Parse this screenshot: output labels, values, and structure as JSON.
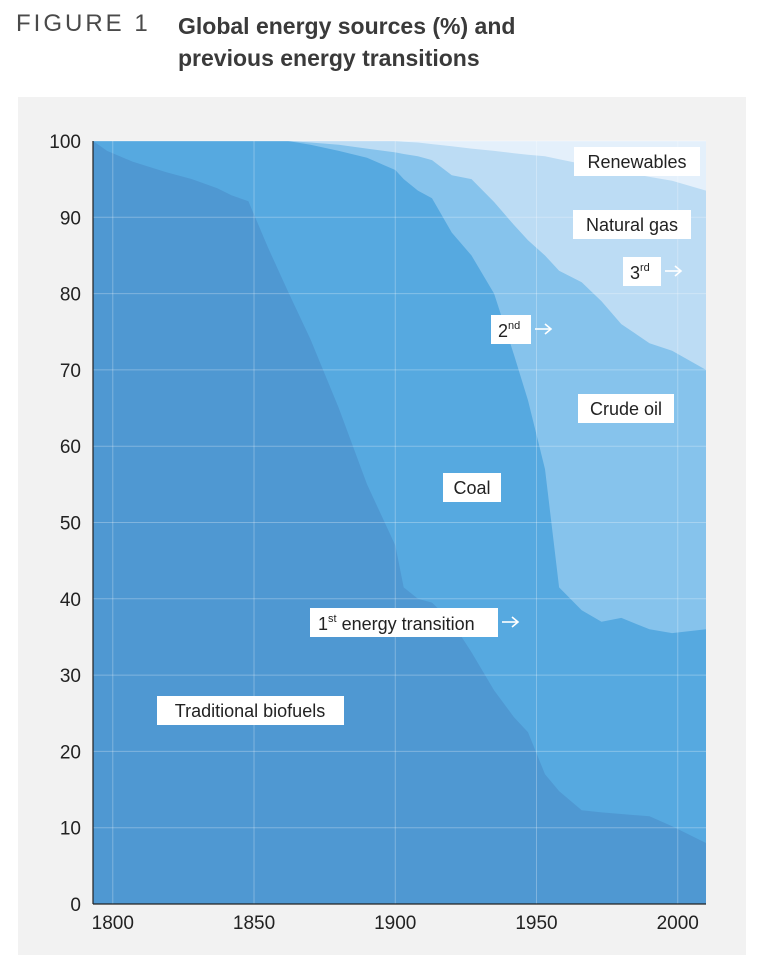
{
  "figure": {
    "label": "FIGURE 1",
    "title_line1": "Global energy sources (%) and",
    "title_line2": "previous energy transitions"
  },
  "chart_data": {
    "type": "area",
    "stacked": true,
    "xlim": [
      1793,
      2010
    ],
    "ylim": [
      0,
      100
    ],
    "x_ticks": [
      1800,
      1850,
      1900,
      1950,
      2000
    ],
    "y_ticks": [
      0,
      10,
      20,
      30,
      40,
      50,
      60,
      70,
      80,
      90,
      100
    ],
    "gridlines": true,
    "series": [
      {
        "name": "Traditional biofuels",
        "color": "#4f98d2",
        "points": [
          [
            1793,
            100
          ],
          [
            1798,
            98.7
          ],
          [
            1807,
            97.3
          ],
          [
            1819,
            95.9
          ],
          [
            1828,
            95.0
          ],
          [
            1837,
            93.8
          ],
          [
            1842,
            92.9
          ],
          [
            1848,
            92.1
          ],
          [
            1855,
            86
          ],
          [
            1862,
            80.3
          ],
          [
            1870,
            74
          ],
          [
            1880,
            65
          ],
          [
            1890,
            55
          ],
          [
            1900,
            47
          ],
          [
            1903,
            41.5
          ],
          [
            1908,
            40
          ],
          [
            1913,
            39.5
          ],
          [
            1920,
            37
          ],
          [
            1927,
            33
          ],
          [
            1935,
            28
          ],
          [
            1942,
            24.5
          ],
          [
            1947,
            22.5
          ],
          [
            1953,
            17
          ],
          [
            1958,
            14.8
          ],
          [
            1966,
            12.3
          ],
          [
            1973,
            12
          ],
          [
            1980,
            11.8
          ],
          [
            1990,
            11.5
          ],
          [
            1998,
            10.2
          ],
          [
            2010,
            8
          ]
        ]
      },
      {
        "name": "Coal",
        "color": "#56a9e0",
        "points": [
          [
            1793,
            100
          ],
          [
            1798,
            100
          ],
          [
            1807,
            100
          ],
          [
            1819,
            100
          ],
          [
            1828,
            100
          ],
          [
            1837,
            100
          ],
          [
            1842,
            100
          ],
          [
            1848,
            100
          ],
          [
            1855,
            100
          ],
          [
            1862,
            100
          ],
          [
            1870,
            99.5
          ],
          [
            1880,
            98.7
          ],
          [
            1890,
            97.8
          ],
          [
            1900,
            96.2
          ],
          [
            1903,
            95
          ],
          [
            1908,
            93.5
          ],
          [
            1913,
            92.5
          ],
          [
            1920,
            88
          ],
          [
            1927,
            85
          ],
          [
            1935,
            80
          ],
          [
            1942,
            72
          ],
          [
            1947,
            66
          ],
          [
            1953,
            57
          ],
          [
            1958,
            41.5
          ],
          [
            1966,
            38.5
          ],
          [
            1973,
            37
          ],
          [
            1980,
            37.5
          ],
          [
            1990,
            36
          ],
          [
            1998,
            35.5
          ],
          [
            2010,
            36
          ]
        ]
      },
      {
        "name": "Crude oil",
        "color": "#86c3ec",
        "points": [
          [
            1793,
            100
          ],
          [
            1798,
            100
          ],
          [
            1807,
            100
          ],
          [
            1819,
            100
          ],
          [
            1828,
            100
          ],
          [
            1837,
            100
          ],
          [
            1842,
            100
          ],
          [
            1848,
            100
          ],
          [
            1855,
            100
          ],
          [
            1862,
            100
          ],
          [
            1870,
            99.8
          ],
          [
            1880,
            99.5
          ],
          [
            1890,
            99
          ],
          [
            1900,
            98.5
          ],
          [
            1903,
            98.3
          ],
          [
            1908,
            98
          ],
          [
            1913,
            97.5
          ],
          [
            1920,
            95.5
          ],
          [
            1927,
            95
          ],
          [
            1935,
            92
          ],
          [
            1942,
            89
          ],
          [
            1947,
            87
          ],
          [
            1953,
            85
          ],
          [
            1958,
            83
          ],
          [
            1966,
            81.5
          ],
          [
            1973,
            79
          ],
          [
            1980,
            76
          ],
          [
            1990,
            73.5
          ],
          [
            1998,
            72.5
          ],
          [
            2010,
            70
          ]
        ]
      },
      {
        "name": "Natural gas",
        "color": "#bcdcf4",
        "points": [
          [
            1793,
            100
          ],
          [
            1798,
            100
          ],
          [
            1807,
            100
          ],
          [
            1819,
            100
          ],
          [
            1828,
            100
          ],
          [
            1837,
            100
          ],
          [
            1842,
            100
          ],
          [
            1848,
            100
          ],
          [
            1855,
            100
          ],
          [
            1862,
            100
          ],
          [
            1870,
            100
          ],
          [
            1880,
            100
          ],
          [
            1890,
            100
          ],
          [
            1900,
            100
          ],
          [
            1903,
            99.9
          ],
          [
            1908,
            99.8
          ],
          [
            1913,
            99.6
          ],
          [
            1920,
            99.3
          ],
          [
            1927,
            99
          ],
          [
            1935,
            98.7
          ],
          [
            1942,
            98.4
          ],
          [
            1947,
            98.2
          ],
          [
            1953,
            98
          ],
          [
            1958,
            97.6
          ],
          [
            1966,
            97
          ],
          [
            1973,
            96.5
          ],
          [
            1980,
            96
          ],
          [
            1990,
            95.3
          ],
          [
            1998,
            94.8
          ],
          [
            2010,
            93.5
          ]
        ]
      },
      {
        "name": "Renewables",
        "color": "#e4f0fb",
        "points": [
          [
            1793,
            100
          ],
          [
            2010,
            100
          ]
        ]
      }
    ],
    "annotations": [
      {
        "id": "renewables",
        "text": "Renewables"
      },
      {
        "id": "natural-gas",
        "text": "Natural gas"
      },
      {
        "id": "crude-oil",
        "text": "Crude oil"
      },
      {
        "id": "coal",
        "text": "Coal"
      },
      {
        "id": "traditional-biofuels",
        "text": "Traditional biofuels"
      },
      {
        "id": "first-transition",
        "text_main": "1",
        "sup": "st",
        "text_rest": " energy transition"
      },
      {
        "id": "second-transition",
        "text_main": "2",
        "sup": "nd"
      },
      {
        "id": "third-transition",
        "text_main": "3",
        "sup": "rd"
      }
    ]
  }
}
